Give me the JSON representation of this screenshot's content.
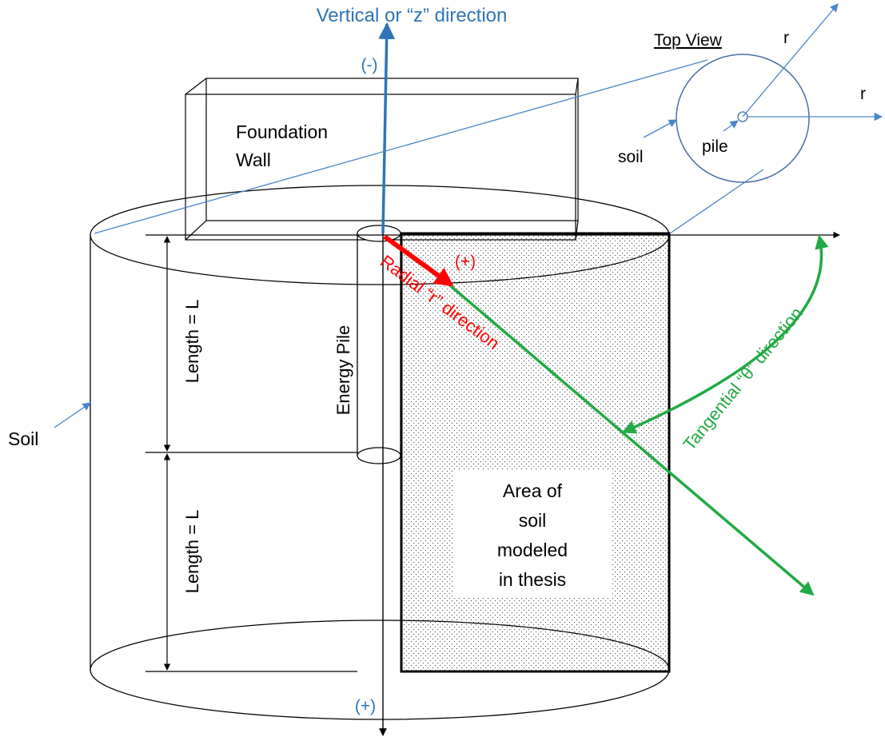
{
  "labels": {
    "vertical_axis": "Vertical or “z” direction",
    "minus_sign": "(-)",
    "plus_bottom": "(+)",
    "plus_radial": "(+)",
    "radial_direction": "Radial “r” direction",
    "tangential_direction": "Tangential “θ” direction",
    "foundation_wall": [
      "Foundation",
      "Wall"
    ],
    "energy_pile": "Energy Pile",
    "length_upper": "Length = L",
    "length_lower": "Length = L",
    "soil_left": "Soil",
    "area_soil": [
      "Area of",
      "soil",
      "modeled",
      "in thesis"
    ]
  },
  "top_view": {
    "title": "Top View",
    "r_upper": "r",
    "r_right": "r",
    "soil": "soil",
    "pile": "pile"
  },
  "colors": {
    "vertical_axis": "#2e75b6",
    "radial": "#ff0000",
    "tangential": "#22aa44",
    "leader_lines": "#4a86c8",
    "ink": "#000000"
  }
}
